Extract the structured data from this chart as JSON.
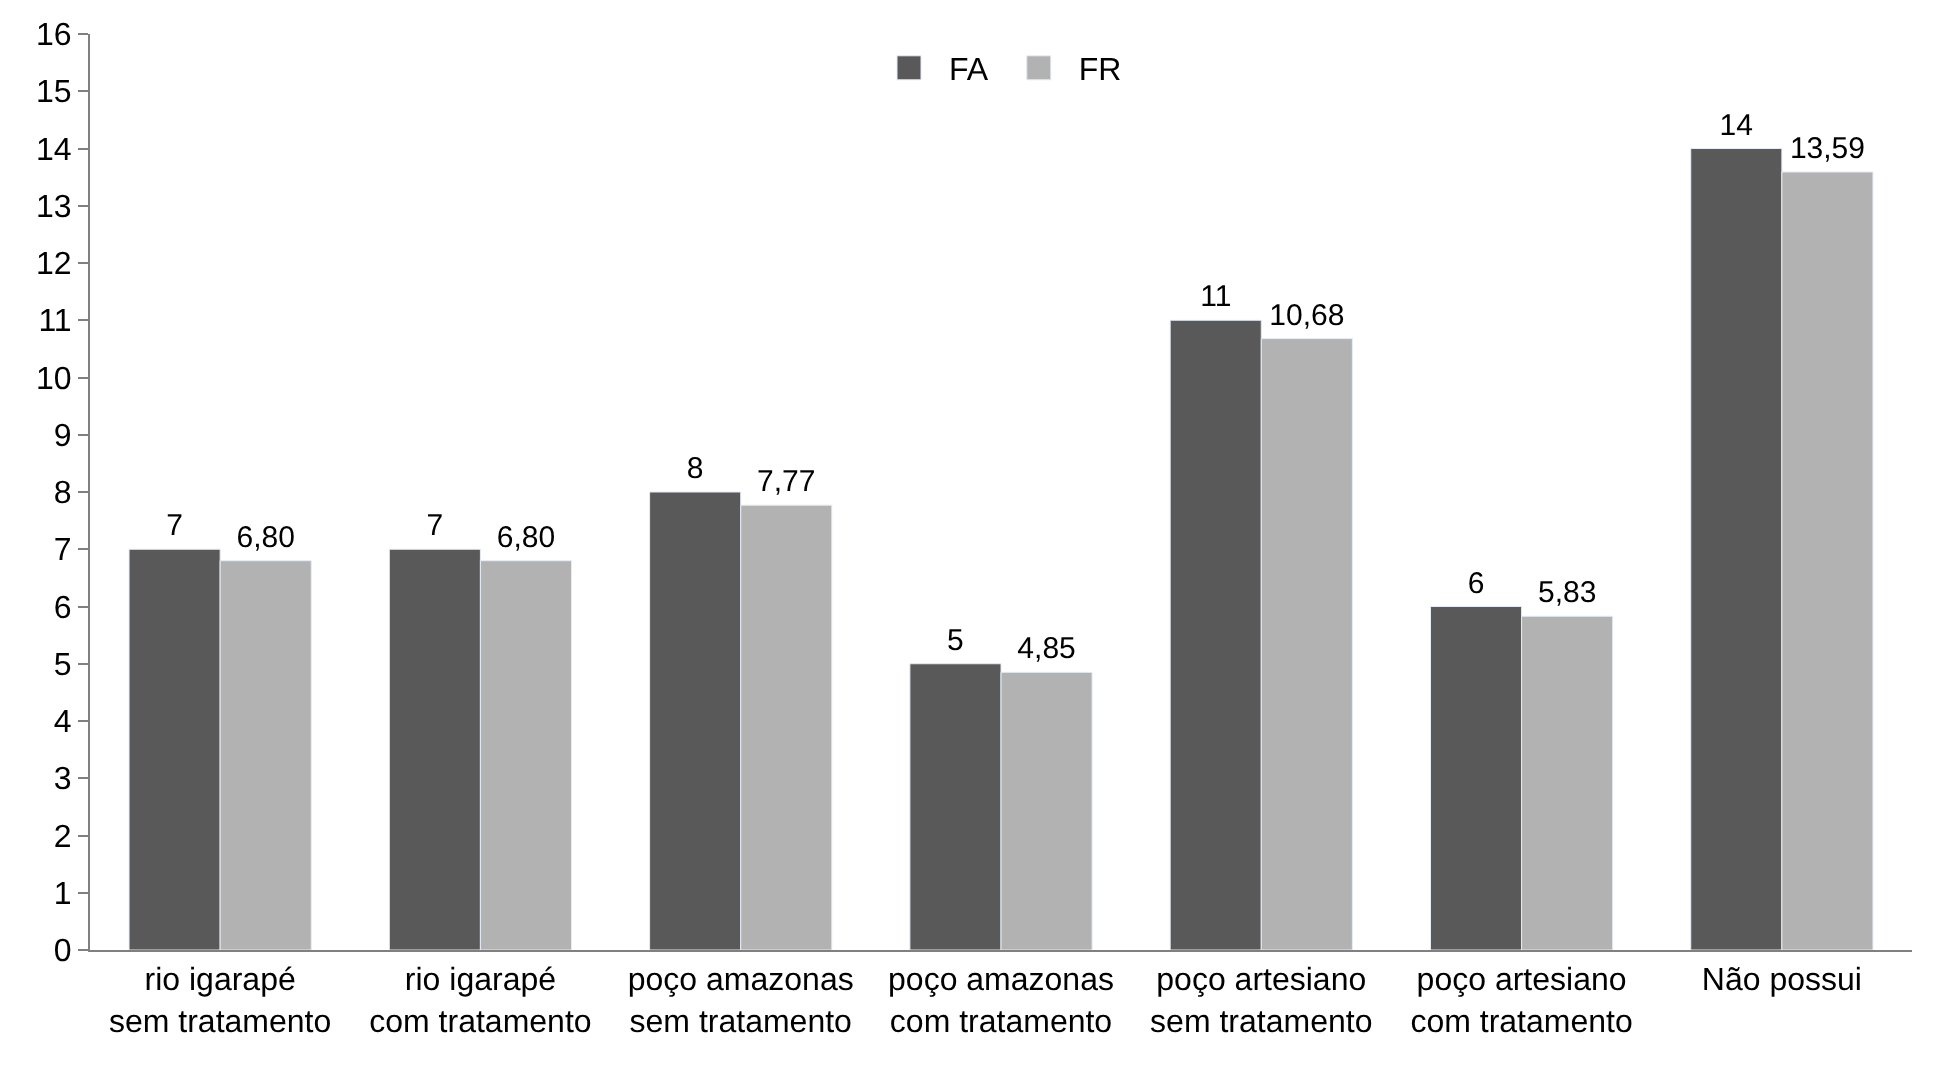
{
  "chart_data": {
    "type": "bar",
    "categories": [
      "rio igarapé sem tratamento",
      "rio igarapé com tratamento",
      "poço amazonas sem tratamento",
      "poço amazonas com tratamento",
      "poço artesiano sem tratamento",
      "poço artesiano com tratamento",
      "Não possui"
    ],
    "series": [
      {
        "name": "FA",
        "color": "#595959",
        "values": [
          7,
          7,
          8,
          5,
          11,
          6,
          14
        ],
        "value_labels": [
          "7",
          "7",
          "8",
          "5",
          "11",
          "6",
          "14"
        ]
      },
      {
        "name": "FR",
        "color": "#b2b2b2",
        "values": [
          6.8,
          6.8,
          7.77,
          4.85,
          10.68,
          5.83,
          13.59
        ],
        "value_labels": [
          "6,80",
          "6,80",
          "7,77",
          "4,85",
          "10,68",
          "5,83",
          "13,59"
        ]
      }
    ],
    "ylim": [
      0,
      16
    ],
    "yticks": [
      0,
      1,
      2,
      3,
      4,
      5,
      6,
      7,
      8,
      9,
      10,
      11,
      12,
      13,
      14,
      15,
      16
    ],
    "legend": "top"
  }
}
